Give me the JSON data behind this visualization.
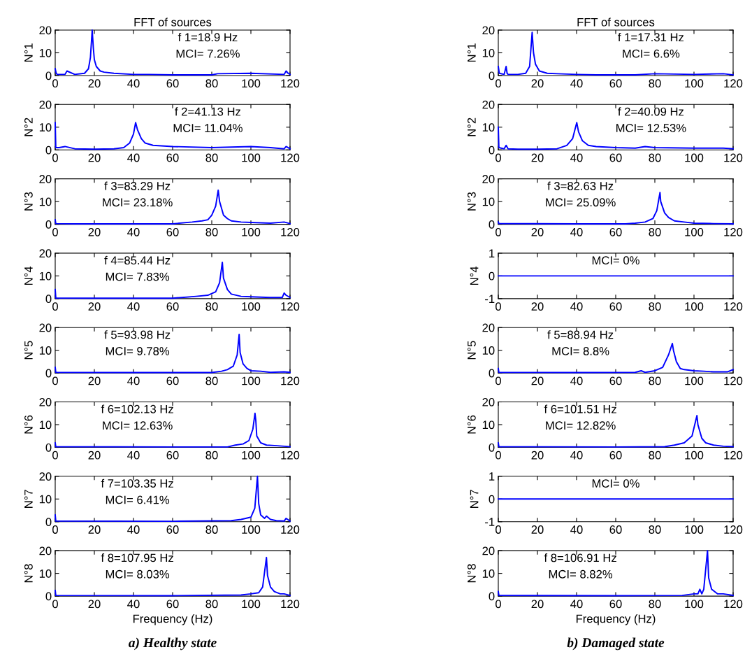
{
  "chart_data": [
    {
      "type": "line",
      "title": "FFT of sources",
      "ylabel": "N°1",
      "xlim": [
        0,
        120
      ],
      "ylim": [
        0,
        20
      ],
      "xticks": [
        0,
        20,
        40,
        60,
        80,
        100,
        120
      ],
      "yticks": [
        0,
        10,
        20
      ],
      "annotations": [
        "f 1=18.9 Hz",
        "MCI= 7.26%"
      ],
      "series": [
        {
          "color": "#0000ff",
          "x": [
            0,
            0.5,
            1,
            5,
            6,
            10,
            15,
            17,
            18,
            18.9,
            19.5,
            20,
            21,
            23,
            25,
            30,
            40,
            48,
            60,
            80,
            83,
            100,
            117,
            118,
            119,
            120
          ],
          "values": [
            3,
            1,
            0.5,
            0.5,
            2,
            0.5,
            1,
            3,
            8,
            20,
            12,
            7,
            4,
            2,
            1.5,
            1,
            0.5,
            0.5,
            0.3,
            0.3,
            0.8,
            1,
            0.5,
            2,
            1,
            0.5
          ]
        }
      ]
    },
    {
      "type": "line",
      "ylabel": "N°2",
      "xlim": [
        0,
        120
      ],
      "ylim": [
        0,
        20
      ],
      "xticks": [
        0,
        20,
        40,
        60,
        80,
        100,
        120
      ],
      "yticks": [
        0,
        10,
        20
      ],
      "annotations": [
        "f 2=41.13 Hz",
        "MCI= 11.04%"
      ],
      "series": [
        {
          "color": "#0000ff",
          "x": [
            0,
            0.3,
            2,
            5,
            10,
            20,
            30,
            35,
            38,
            40,
            41.1,
            42,
            44,
            46,
            50,
            60,
            80,
            100,
            110,
            117,
            118,
            120
          ],
          "values": [
            12,
            1,
            1,
            1.5,
            0.5,
            0.3,
            0.5,
            1,
            3,
            7,
            12,
            9,
            5,
            3,
            2,
            1.5,
            1,
            1.5,
            1,
            0.5,
            1.5,
            0.5
          ]
        }
      ]
    },
    {
      "type": "line",
      "ylabel": "N°3",
      "xlim": [
        0,
        120
      ],
      "ylim": [
        0,
        20
      ],
      "xticks": [
        0,
        20,
        40,
        60,
        80,
        100,
        120
      ],
      "yticks": [
        0,
        10,
        20
      ],
      "annotations": [
        "f 3=83.29 Hz",
        "MCI= 23.18%"
      ],
      "series": [
        {
          "color": "#0000ff",
          "x": [
            0,
            0.3,
            10,
            40,
            60,
            70,
            75,
            78,
            80,
            82,
            83.3,
            84,
            86,
            88,
            90,
            95,
            100,
            110,
            117,
            120
          ],
          "values": [
            2,
            0.3,
            0.2,
            0.2,
            0.2,
            1,
            1.5,
            2,
            4,
            8,
            15,
            10,
            4,
            2.5,
            1.5,
            1,
            0.8,
            0.5,
            1,
            0.3
          ]
        }
      ]
    },
    {
      "type": "line",
      "ylabel": "N°4",
      "xlim": [
        0,
        120
      ],
      "ylim": [
        0,
        20
      ],
      "xticks": [
        0,
        20,
        40,
        60,
        80,
        100,
        120
      ],
      "yticks": [
        0,
        10,
        20
      ],
      "annotations": [
        "f 4=85.44 Hz",
        "MCI= 7.83%"
      ],
      "series": [
        {
          "color": "#0000ff",
          "x": [
            0,
            0.3,
            20,
            60,
            72,
            78,
            82,
            84,
            85.4,
            86,
            88,
            90,
            95,
            100,
            110,
            116,
            117,
            118,
            120
          ],
          "values": [
            4,
            0.3,
            0.2,
            0.2,
            1,
            1.5,
            3,
            7,
            16,
            9,
            4,
            2,
            1,
            0.8,
            0.5,
            0.5,
            2.5,
            1.5,
            0.5
          ]
        }
      ]
    },
    {
      "type": "line",
      "ylabel": "N°5",
      "xlim": [
        0,
        120
      ],
      "ylim": [
        0,
        20
      ],
      "xticks": [
        0,
        20,
        40,
        60,
        80,
        100,
        120
      ],
      "yticks": [
        0,
        10,
        20
      ],
      "annotations": [
        "f 5=93.98 Hz",
        "MCI= 9.78%"
      ],
      "series": [
        {
          "color": "#0000ff",
          "x": [
            0,
            0.3,
            40,
            80,
            85,
            88,
            91,
            93,
            94,
            94.5,
            96,
            98,
            100,
            105,
            110,
            117,
            120
          ],
          "values": [
            2.5,
            0.3,
            0.2,
            0.2,
            0.8,
            1.5,
            3,
            8,
            17,
            9,
            4,
            2,
            1,
            0.8,
            0.3,
            0.5,
            0.3
          ]
        }
      ]
    },
    {
      "type": "line",
      "ylabel": "N°6",
      "xlim": [
        0,
        120
      ],
      "ylim": [
        0,
        20
      ],
      "xticks": [
        0,
        20,
        40,
        60,
        80,
        100,
        120
      ],
      "yticks": [
        0,
        10,
        20
      ],
      "annotations": [
        "f 6=102.13 Hz",
        "MCI= 12.63%"
      ],
      "series": [
        {
          "color": "#0000ff",
          "x": [
            0,
            0.3,
            60,
            88,
            92,
            96,
            99,
            101,
            102.1,
            102.5,
            103,
            105,
            108,
            112,
            117,
            120
          ],
          "values": [
            2,
            0.3,
            0.2,
            0.2,
            1,
            1.5,
            3,
            8,
            15,
            12,
            5,
            2,
            1,
            0.8,
            0.5,
            0.3
          ]
        }
      ]
    },
    {
      "type": "line",
      "ylabel": "N°7",
      "xlim": [
        0,
        120
      ],
      "ylim": [
        0,
        20
      ],
      "xticks": [
        0,
        20,
        40,
        60,
        80,
        100,
        120
      ],
      "yticks": [
        0,
        10,
        20
      ],
      "annotations": [
        "f 7=103.35 Hz",
        "MCI= 6.41%"
      ],
      "series": [
        {
          "color": "#0000ff",
          "x": [
            0,
            0.3,
            60,
            90,
            95,
            100,
            102,
            103.35,
            104,
            105,
            107,
            108,
            110,
            113,
            117,
            118,
            120
          ],
          "values": [
            3,
            0.3,
            0.2,
            0.5,
            1,
            2,
            6,
            20,
            8,
            3,
            1.5,
            2.5,
            1,
            0.5,
            0.3,
            1.5,
            0.3
          ]
        }
      ]
    },
    {
      "type": "line",
      "ylabel": "N°8",
      "xlabel": "Frequency (Hz)",
      "xlim": [
        0,
        120
      ],
      "ylim": [
        0,
        20
      ],
      "xticks": [
        0,
        20,
        40,
        60,
        80,
        100,
        120
      ],
      "yticks": [
        0,
        10,
        20
      ],
      "annotations": [
        "f 8=107.95 Hz",
        "MCI= 8.03%",
        "a) Healthy state"
      ],
      "series": [
        {
          "color": "#0000ff",
          "x": [
            0,
            0.3,
            60,
            95,
            100,
            104,
            106,
            107.95,
            108.5,
            110,
            112,
            115,
            117,
            120
          ],
          "values": [
            2.5,
            0.3,
            0.2,
            0.5,
            1,
            1.5,
            4,
            17,
            9,
            4,
            2,
            1,
            1,
            0.3
          ]
        }
      ]
    },
    {
      "type": "line",
      "title": "FFT of sources",
      "ylabel": "N°1",
      "xlim": [
        0,
        120
      ],
      "ylim": [
        0,
        20
      ],
      "xticks": [
        0,
        20,
        40,
        60,
        80,
        100,
        120
      ],
      "yticks": [
        0,
        10,
        20
      ],
      "annotations": [
        "f 1=17.31 Hz",
        "MCI= 6.6%"
      ],
      "series": [
        {
          "color": "#0000ff",
          "x": [
            0,
            0.5,
            3,
            4,
            4.5,
            5,
            10,
            14,
            16,
            17.3,
            18,
            19,
            21,
            25,
            30,
            40,
            50,
            70,
            80,
            100,
            115,
            120
          ],
          "values": [
            4,
            1,
            0.5,
            4,
            1,
            0.5,
            0.5,
            1,
            4,
            19,
            10,
            5,
            2,
            1,
            0.8,
            0.5,
            0.3,
            0.3,
            0.8,
            0.5,
            0.8,
            0.3
          ]
        }
      ]
    },
    {
      "type": "line",
      "ylabel": "N°2",
      "xlim": [
        0,
        120
      ],
      "ylim": [
        0,
        20
      ],
      "xticks": [
        0,
        20,
        40,
        60,
        80,
        100,
        120
      ],
      "yticks": [
        0,
        10,
        20
      ],
      "annotations": [
        "f 2=40.09 Hz",
        "MCI= 12.53%"
      ],
      "series": [
        {
          "color": "#0000ff",
          "x": [
            0,
            0.3,
            3,
            4,
            5,
            10,
            20,
            30,
            35,
            38,
            40.09,
            41,
            43,
            46,
            50,
            60,
            70,
            75,
            80,
            100,
            115,
            120
          ],
          "values": [
            10,
            1,
            0.5,
            2,
            0.5,
            0.3,
            0.3,
            0.5,
            2,
            5,
            12,
            8,
            4,
            2,
            1.5,
            1,
            0.8,
            1.5,
            1,
            0.8,
            0.8,
            0.5
          ]
        }
      ]
    },
    {
      "type": "line",
      "ylabel": "N°3",
      "xlim": [
        0,
        120
      ],
      "ylim": [
        0,
        20
      ],
      "xticks": [
        0,
        20,
        40,
        60,
        80,
        100,
        120
      ],
      "yticks": [
        0,
        10,
        20
      ],
      "annotations": [
        "f 3=82.63 Hz",
        "MCI= 25.09%"
      ],
      "series": [
        {
          "color": "#0000ff",
          "x": [
            0,
            0.3,
            40,
            65,
            70,
            75,
            79,
            81,
            82.63,
            83,
            85,
            87,
            90,
            95,
            100,
            110,
            120
          ],
          "values": [
            1,
            0.3,
            0.2,
            0.2,
            0.5,
            1,
            2.5,
            6,
            14,
            10,
            5,
            3,
            1.5,
            1,
            0.5,
            0.3,
            0.2
          ]
        }
      ]
    },
    {
      "type": "line",
      "ylabel": "N°4",
      "xlim": [
        0,
        120
      ],
      "ylim": [
        -1,
        1
      ],
      "xticks": [
        0,
        20,
        40,
        60,
        80,
        100,
        120
      ],
      "yticks": [
        -1,
        0,
        1
      ],
      "annotations": [
        "MCI= 0%"
      ],
      "series": [
        {
          "color": "#0000ff",
          "x": [
            0,
            120
          ],
          "values": [
            0,
            0
          ]
        }
      ]
    },
    {
      "type": "line",
      "ylabel": "N°5",
      "xlim": [
        0,
        120
      ],
      "ylim": [
        0,
        20
      ],
      "xticks": [
        0,
        20,
        40,
        60,
        80,
        100,
        120
      ],
      "yticks": [
        0,
        10,
        20
      ],
      "annotations": [
        "f 5=88.94 Hz",
        "MCI= 8.8%"
      ],
      "series": [
        {
          "color": "#0000ff",
          "x": [
            0,
            0.3,
            40,
            70,
            73,
            75,
            80,
            84,
            87,
            88.94,
            89.5,
            91,
            93,
            95,
            100,
            105,
            110,
            117,
            120
          ],
          "values": [
            2,
            0.3,
            0.2,
            0.3,
            1,
            0.3,
            1,
            2.5,
            8,
            13,
            10,
            5,
            2,
            1.5,
            1,
            0.8,
            0.5,
            0.5,
            1.5
          ]
        }
      ]
    },
    {
      "type": "line",
      "ylabel": "N°6",
      "xlim": [
        0,
        120
      ],
      "ylim": [
        0,
        20
      ],
      "xticks": [
        0,
        20,
        40,
        60,
        80,
        100,
        120
      ],
      "yticks": [
        0,
        10,
        20
      ],
      "annotations": [
        "f 6=101.51 Hz",
        "MCI= 12.82%"
      ],
      "series": [
        {
          "color": "#0000ff",
          "x": [
            0,
            0.3,
            60,
            85,
            90,
            95,
            99,
            101.51,
            102,
            104,
            106,
            110,
            115,
            120
          ],
          "values": [
            2,
            0.3,
            0.2,
            0.3,
            1,
            2,
            5,
            14,
            10,
            4,
            2,
            1,
            0.5,
            0.3
          ]
        }
      ]
    },
    {
      "type": "line",
      "ylabel": "N°7",
      "xlim": [
        0,
        120
      ],
      "ylim": [
        -1,
        1
      ],
      "xticks": [
        0,
        20,
        40,
        60,
        80,
        100,
        120
      ],
      "yticks": [
        -1,
        0,
        1
      ],
      "annotations": [
        "MCI= 0%"
      ],
      "series": [
        {
          "color": "#0000ff",
          "x": [
            0,
            120
          ],
          "values": [
            0,
            0
          ]
        }
      ]
    },
    {
      "type": "line",
      "ylabel": "N°8",
      "xlabel": "Frequency (Hz)",
      "xlim": [
        0,
        120
      ],
      "ylim": [
        0,
        20
      ],
      "xticks": [
        0,
        20,
        40,
        60,
        80,
        100,
        120
      ],
      "yticks": [
        0,
        10,
        20
      ],
      "annotations": [
        "f 8=106.91 Hz",
        "MCI= 8.82%",
        "b) Damaged state"
      ],
      "series": [
        {
          "color": "#0000ff",
          "x": [
            0,
            0.3,
            60,
            94,
            100,
            102,
            103,
            104,
            105,
            106.91,
            107.5,
            109,
            112,
            115,
            120
          ],
          "values": [
            2,
            0.3,
            0.2,
            0.3,
            1,
            1,
            3,
            1,
            3,
            20,
            8,
            3,
            1,
            1,
            0.3
          ]
        }
      ]
    }
  ]
}
